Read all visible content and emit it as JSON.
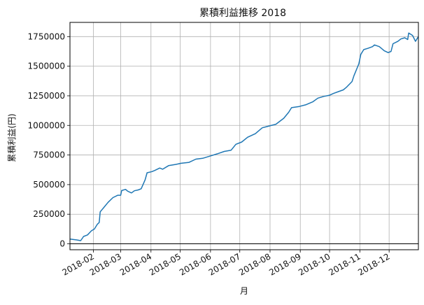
{
  "chart_data": {
    "type": "line",
    "title": "累積利益推移  2018",
    "xlabel": "月",
    "ylabel": "累積利益(円)",
    "xlim": [
      "2018-01-08",
      "2018-12-31"
    ],
    "ylim": [
      -50000,
      1870000
    ],
    "grid": true,
    "zero_line": true,
    "colors": {
      "line": "#1f77b4",
      "grid": "#b0b0b0",
      "zero_line": "#000000"
    },
    "x_ticks": [
      {
        "date": "2018-02-01",
        "label": "2018-02"
      },
      {
        "date": "2018-03-01",
        "label": "2018-03"
      },
      {
        "date": "2018-04-01",
        "label": "2018-04"
      },
      {
        "date": "2018-05-01",
        "label": "2018-05"
      },
      {
        "date": "2018-06-01",
        "label": "2018-06"
      },
      {
        "date": "2018-07-01",
        "label": "2018-07"
      },
      {
        "date": "2018-08-01",
        "label": "2018-08"
      },
      {
        "date": "2018-09-01",
        "label": "2018-09"
      },
      {
        "date": "2018-10-01",
        "label": "2018-10"
      },
      {
        "date": "2018-11-01",
        "label": "2018-11"
      },
      {
        "date": "2018-12-01",
        "label": "2018-12"
      }
    ],
    "y_ticks": [
      {
        "value": 0,
        "label": "0"
      },
      {
        "value": 250000,
        "label": "250000"
      },
      {
        "value": 500000,
        "label": "500000"
      },
      {
        "value": 750000,
        "label": "750000"
      },
      {
        "value": 1000000,
        "label": "1000000"
      },
      {
        "value": 1250000,
        "label": "1250000"
      },
      {
        "value": 1500000,
        "label": "1500000"
      },
      {
        "value": 1750000,
        "label": "1750000"
      }
    ],
    "series": [
      {
        "points": [
          [
            "2018-01-08",
            40000
          ],
          [
            "2018-01-15",
            33000
          ],
          [
            "2018-01-19",
            27000
          ],
          [
            "2018-01-22",
            62000
          ],
          [
            "2018-01-26",
            75000
          ],
          [
            "2018-01-30",
            110000
          ],
          [
            "2018-02-02",
            125000
          ],
          [
            "2018-02-05",
            165000
          ],
          [
            "2018-02-07",
            180000
          ],
          [
            "2018-02-08",
            270000
          ],
          [
            "2018-02-12",
            310000
          ],
          [
            "2018-02-16",
            350000
          ],
          [
            "2018-02-21",
            390000
          ],
          [
            "2018-02-26",
            410000
          ],
          [
            "2018-03-01",
            410000
          ],
          [
            "2018-03-02",
            450000
          ],
          [
            "2018-03-06",
            460000
          ],
          [
            "2018-03-08",
            445000
          ],
          [
            "2018-03-12",
            430000
          ],
          [
            "2018-03-15",
            448000
          ],
          [
            "2018-03-19",
            455000
          ],
          [
            "2018-03-22",
            465000
          ],
          [
            "2018-03-26",
            540000
          ],
          [
            "2018-03-28",
            600000
          ],
          [
            "2018-04-02",
            610000
          ],
          [
            "2018-04-05",
            620000
          ],
          [
            "2018-04-10",
            640000
          ],
          [
            "2018-04-13",
            630000
          ],
          [
            "2018-04-19",
            660000
          ],
          [
            "2018-04-26",
            670000
          ],
          [
            "2018-05-02",
            680000
          ],
          [
            "2018-05-10",
            688000
          ],
          [
            "2018-05-17",
            715000
          ],
          [
            "2018-05-24",
            722000
          ],
          [
            "2018-05-31",
            740000
          ],
          [
            "2018-06-08",
            760000
          ],
          [
            "2018-06-15",
            780000
          ],
          [
            "2018-06-22",
            790000
          ],
          [
            "2018-06-27",
            840000
          ],
          [
            "2018-07-03",
            860000
          ],
          [
            "2018-07-09",
            900000
          ],
          [
            "2018-07-17",
            930000
          ],
          [
            "2018-07-24",
            980000
          ],
          [
            "2018-07-31",
            995000
          ],
          [
            "2018-08-07",
            1010000
          ],
          [
            "2018-08-15",
            1060000
          ],
          [
            "2018-08-20",
            1110000
          ],
          [
            "2018-08-23",
            1150000
          ],
          [
            "2018-08-31",
            1160000
          ],
          [
            "2018-09-07",
            1175000
          ],
          [
            "2018-09-14",
            1200000
          ],
          [
            "2018-09-19",
            1230000
          ],
          [
            "2018-09-25",
            1245000
          ],
          [
            "2018-10-01",
            1255000
          ],
          [
            "2018-10-05",
            1270000
          ],
          [
            "2018-10-10",
            1285000
          ],
          [
            "2018-10-15",
            1300000
          ],
          [
            "2018-10-18",
            1320000
          ],
          [
            "2018-10-24",
            1370000
          ],
          [
            "2018-10-26",
            1420000
          ],
          [
            "2018-10-29",
            1480000
          ],
          [
            "2018-10-31",
            1520000
          ],
          [
            "2018-11-02",
            1600000
          ],
          [
            "2018-11-05",
            1640000
          ],
          [
            "2018-11-09",
            1650000
          ],
          [
            "2018-11-14",
            1665000
          ],
          [
            "2018-11-16",
            1680000
          ],
          [
            "2018-11-21",
            1665000
          ],
          [
            "2018-11-26",
            1630000
          ],
          [
            "2018-11-30",
            1615000
          ],
          [
            "2018-12-03",
            1625000
          ],
          [
            "2018-12-05",
            1690000
          ],
          [
            "2018-12-10",
            1710000
          ],
          [
            "2018-12-13",
            1730000
          ],
          [
            "2018-12-17",
            1740000
          ],
          [
            "2018-12-20",
            1725000
          ],
          [
            "2018-12-21",
            1780000
          ],
          [
            "2018-12-25",
            1760000
          ],
          [
            "2018-12-28",
            1710000
          ],
          [
            "2018-12-31",
            1750000
          ]
        ]
      }
    ]
  }
}
